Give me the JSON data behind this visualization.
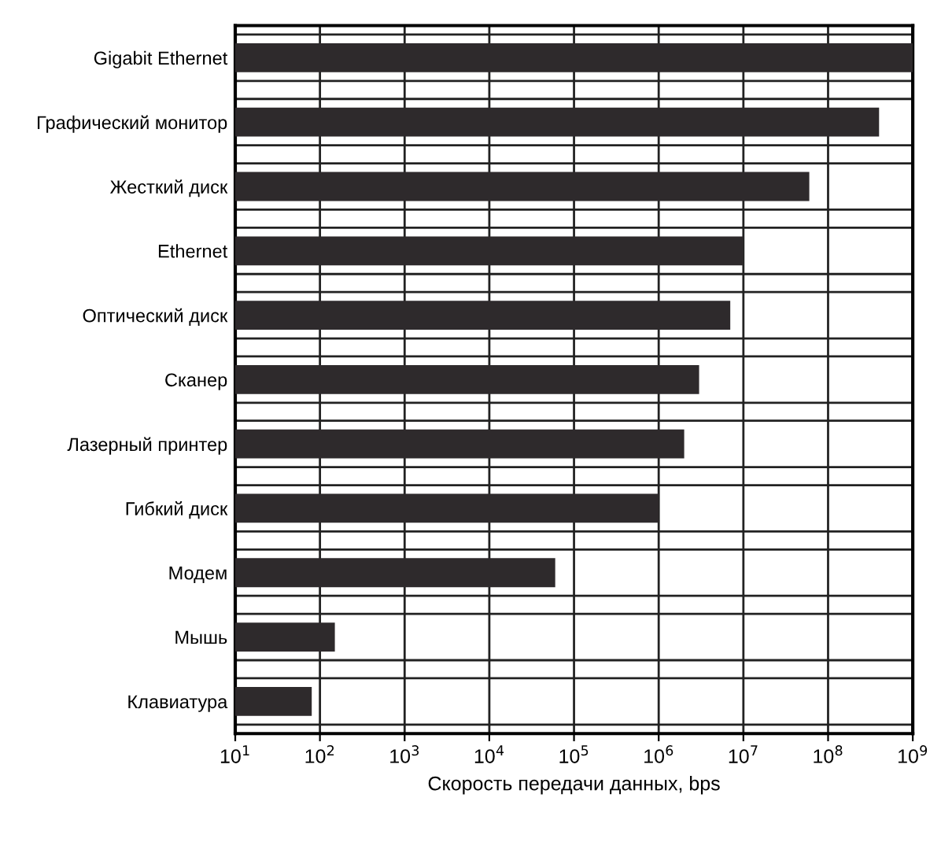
{
  "chart_data": {
    "type": "bar",
    "orientation": "horizontal",
    "xlabel": "Скорость передачи данных, bps",
    "categories": [
      "Gigabit Ethernet",
      "Графический монитор",
      "Жесткий диск",
      "Ethernet",
      "Оптический диск",
      "Сканер",
      "Лазерный принтер",
      "Гибкий диск",
      "Модем",
      "Мышь",
      "Клавиатура"
    ],
    "values": [
      1000000000,
      400000000,
      60000000,
      10000000,
      7000000,
      3000000,
      2000000,
      1000000,
      60000,
      150,
      80
    ],
    "color": "#2e2a2c",
    "log": "x",
    "xlim": [
      10,
      1000000000
    ],
    "xticks": [
      {
        "value": 10,
        "label": "10$^{1}$"
      },
      {
        "value": 100,
        "label": "10$^{2}$"
      },
      {
        "value": 1000,
        "label": "10$^{3}$"
      },
      {
        "value": 10000,
        "label": "10$^{4}$"
      },
      {
        "value": 100000,
        "label": "10$^{5}$"
      },
      {
        "value": 1000000,
        "label": "10$^{6}$"
      },
      {
        "value": 10000000,
        "label": "10$^{7}$"
      },
      {
        "value": 100000000,
        "label": "10$^{8}$"
      },
      {
        "value": 1000000000,
        "label": "10$^{9}$"
      }
    ],
    "grid": true
  }
}
